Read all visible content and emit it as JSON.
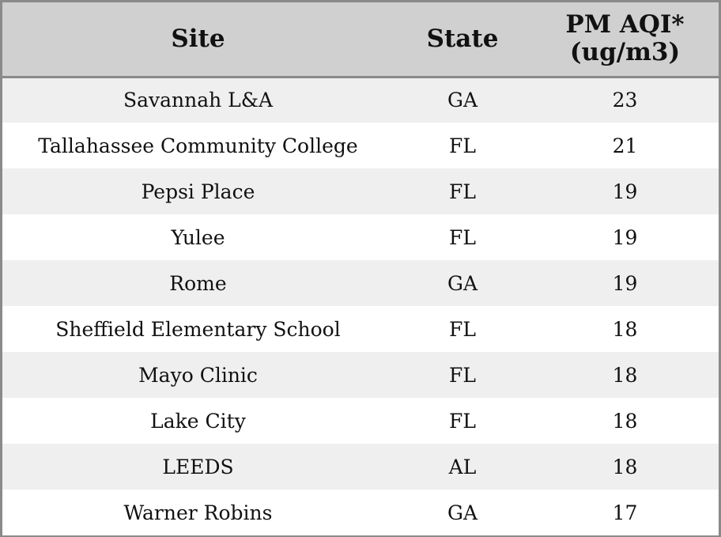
{
  "chart_data": {
    "type": "table",
    "columns": [
      "Site",
      "State",
      "PM AQI*"
    ],
    "column_subtitles": [
      "",
      "",
      "(ug/m3)"
    ],
    "rows": [
      {
        "site": "Savannah L&A",
        "state": "GA",
        "aqi": 23
      },
      {
        "site": "Tallahassee Community College",
        "state": "FL",
        "aqi": 21
      },
      {
        "site": "Pepsi Place",
        "state": "FL",
        "aqi": 19
      },
      {
        "site": "Yulee",
        "state": "FL",
        "aqi": 19
      },
      {
        "site": "Rome",
        "state": "GA",
        "aqi": 19
      },
      {
        "site": "Sheffield Elementary School",
        "state": "FL",
        "aqi": 18
      },
      {
        "site": "Mayo Clinic",
        "state": "FL",
        "aqi": 18
      },
      {
        "site": "Lake City",
        "state": "FL",
        "aqi": 18
      },
      {
        "site": "LEEDS",
        "state": "AL",
        "aqi": 18
      },
      {
        "site": "Warner Robins",
        "state": "GA",
        "aqi": 17
      }
    ]
  },
  "colors": {
    "header_bg": "#d0d0d0",
    "row_alt_bg": "#efefef",
    "row_bg": "#ffffff",
    "border": "#8a8a8a",
    "text": "#111111"
  }
}
